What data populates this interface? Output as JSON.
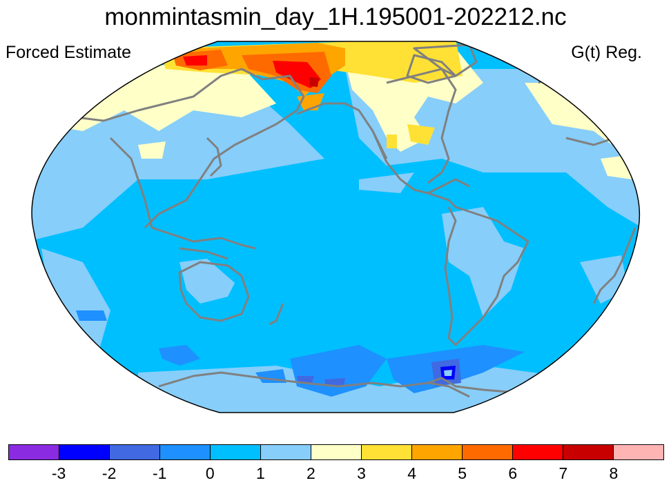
{
  "title": "monmintasmin_day_1H.195001-202212.nc",
  "left_string": "Forced Estimate",
  "right_string": "G(t) Reg.",
  "map": {
    "projection": "Winkel tripel / Robinson-like, Pacific-centered",
    "fill_colors": {
      "lt_-3": "#8a2be2",
      "-3_-2": "#0000ff",
      "-2_-1": "#4169e1",
      "-1_0": "#1e90ff",
      "0_1": "#00bfff",
      "1_2": "#87cefa",
      "2_3": "#ffffc8",
      "3_4": "#ffe135",
      "4_5": "#ffa500",
      "5_6": "#ff6a00",
      "6_7": "#ff0000",
      "7_8": "#c80000",
      "gt_8": "#ffb4b4"
    },
    "coastline_color": "#808080"
  },
  "colorbar": {
    "colors": [
      "#8a2be2",
      "#0000ff",
      "#4169e1",
      "#1e90ff",
      "#00bfff",
      "#87cefa",
      "#ffffc8",
      "#ffe135",
      "#ffa500",
      "#ff6a00",
      "#ff0000",
      "#c80000",
      "#ffb4b4"
    ],
    "labels": [
      "-3",
      "-2",
      "-1",
      "0",
      "1",
      "2",
      "3",
      "4",
      "5",
      "6",
      "7",
      "8"
    ]
  }
}
